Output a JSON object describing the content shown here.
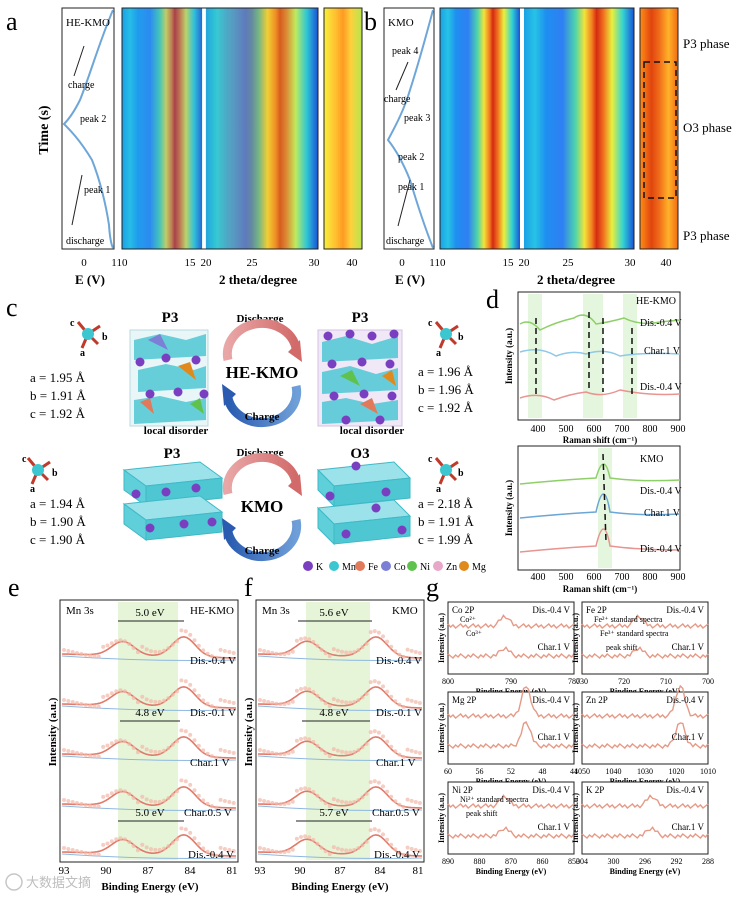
{
  "panels": {
    "a": {
      "letter": "a",
      "sample": "HE-KMO",
      "notes": [
        "charge",
        "peak 2",
        "peak 1",
        "discharge"
      ],
      "y_label": "Time (s)",
      "x_label_e": "E (V)",
      "e_ticks": [
        "0",
        "1"
      ],
      "x_label_2t": "2 theta/degree",
      "tt_ticks": [
        "10",
        "15",
        "20",
        "25",
        "30",
        "40"
      ]
    },
    "b": {
      "letter": "b",
      "sample": "KMO",
      "notes": [
        "peak 4",
        "charge",
        "peak 3",
        "peak 2",
        "peak 1",
        "discharge"
      ],
      "x_label_e": "E (V)",
      "e_ticks": [
        "0",
        "1"
      ],
      "x_label_2t": "2 theta/degree",
      "tt_ticks": [
        "10",
        "15",
        "20",
        "25",
        "30",
        "40"
      ],
      "phases": [
        "P3 phase",
        "O3 phase",
        "P3 phase"
      ]
    },
    "c": {
      "letter": "c",
      "top": {
        "left_phase": "P3",
        "right_phase": "P3",
        "center": "HE-KMO",
        "arrow_top": "Discharge",
        "arrow_bottom": "Charge",
        "left_params": [
          "a = 1.95 Å",
          "b = 1.91 Å",
          "c = 1.92 Å"
        ],
        "right_params": [
          "a = 1.96 Å",
          "b = 1.96 Å",
          "c = 1.92 Å"
        ],
        "left_note": "local disorder",
        "right_note": "local disorder"
      },
      "bottom": {
        "left_phase": "P3",
        "right_phase": "O3",
        "center": "KMO",
        "arrow_top": "Discharge",
        "arrow_bottom": "Charge",
        "left_params": [
          "a = 1.94 Å",
          "b = 1.90 Å",
          "c = 1.90 Å"
        ],
        "right_params": [
          "a = 2.18 Å",
          "b = 1.91 Å",
          "c = 1.99 Å"
        ]
      },
      "axis_letters": [
        "c",
        "b",
        "a"
      ],
      "legend": [
        {
          "label": "K",
          "color": "#7a3fc0"
        },
        {
          "label": "Mn",
          "color": "#3cc7d0"
        },
        {
          "label": "Fe",
          "color": "#e07a5a"
        },
        {
          "label": "Co",
          "color": "#7b7fd6"
        },
        {
          "label": "Ni",
          "color": "#5fc24e"
        },
        {
          "label": "Zn",
          "color": "#e8a6c8"
        },
        {
          "label": "Mg",
          "color": "#e08a1e"
        }
      ]
    },
    "d": {
      "letter": "d",
      "top": {
        "sample": "HE-KMO",
        "curves": [
          "Dis.-0.4 V",
          "Char.1 V",
          "Dis.-0.4 V"
        ]
      },
      "bottom": {
        "sample": "KMO",
        "curves": [
          "Dis.-0.4 V",
          "Char.1 V",
          "Dis.-0.4 V"
        ]
      },
      "y_label": "Intensity (a.u.)",
      "x_label": "Raman shift (cm⁻¹)",
      "x_ticks": [
        "400",
        "500",
        "600",
        "700",
        "800",
        "900"
      ]
    },
    "e": {
      "letter": "e",
      "title": "Mn 3s",
      "sample": "HE-KMO",
      "splits": [
        "5.0 eV",
        "4.8 eV",
        "5.0 eV"
      ],
      "curves": [
        "Dis.-0.4 V",
        "Dis.-0.1 V",
        "Char.1 V",
        "Char.0.5 V",
        "Dis.-0.4 V"
      ],
      "y_label": "Intensity (a.u.)",
      "x_label": "Binding Energy (eV)",
      "x_ticks": [
        "93",
        "90",
        "87",
        "84",
        "81"
      ]
    },
    "f": {
      "letter": "f",
      "title": "Mn 3s",
      "sample": "KMO",
      "splits": [
        "5.6 eV",
        "4.8 eV",
        "5.7 eV"
      ],
      "curves": [
        "Dis.-0.4 V",
        "Dis.-0.1 V",
        "Char.1 V",
        "Char.0.5 V",
        "Dis.-0.4 V"
      ],
      "y_label": "Intensity (a.u.)",
      "x_label": "Binding Energy (eV)",
      "x_ticks": [
        "93",
        "90",
        "87",
        "84",
        "81"
      ]
    },
    "g": {
      "letter": "g",
      "y_label": "Intensity (a.u.)",
      "x_label": "Binding Energy (eV)",
      "subs": [
        {
          "title": "Co 2P",
          "notes": [
            "Co²⁺",
            "Co³⁺"
          ],
          "top": "Dis.-0.4 V",
          "bottom": "Char.1 V",
          "ticks": [
            "800",
            "790",
            "780"
          ]
        },
        {
          "title": "Fe 2P",
          "notes": [
            "Fe²⁺ standard spectra",
            "Fe³⁺ standard spectra",
            "peak shift"
          ],
          "top": "Dis.-0.4 V",
          "bottom": "Char.1 V",
          "ticks": [
            "730",
            "720",
            "710",
            "700"
          ]
        },
        {
          "title": "Mg 2P",
          "notes": [],
          "top": "Dis.-0.4 V",
          "bottom": "Char.1 V",
          "ticks": [
            "60",
            "56",
            "52",
            "48",
            "44"
          ]
        },
        {
          "title": "Zn 2P",
          "notes": [],
          "top": "Dis.-0.4 V",
          "bottom": "Char.1 V",
          "ticks": [
            "1050",
            "1040",
            "1030",
            "1020",
            "1010"
          ]
        },
        {
          "title": "Ni 2P",
          "notes": [
            "Ni²⁺ standard spectra",
            "peak shift"
          ],
          "top": "Dis.-0.4 V",
          "bottom": "Char.1 V",
          "ticks": [
            "890",
            "880",
            "870",
            "860",
            "850"
          ]
        },
        {
          "title": "K 2P",
          "notes": [],
          "top": "Dis.-0.4 V",
          "bottom": "Char.1 V",
          "ticks": [
            "304",
            "300",
            "296",
            "292",
            "288"
          ]
        }
      ]
    }
  },
  "watermark": "大数据文摘"
}
